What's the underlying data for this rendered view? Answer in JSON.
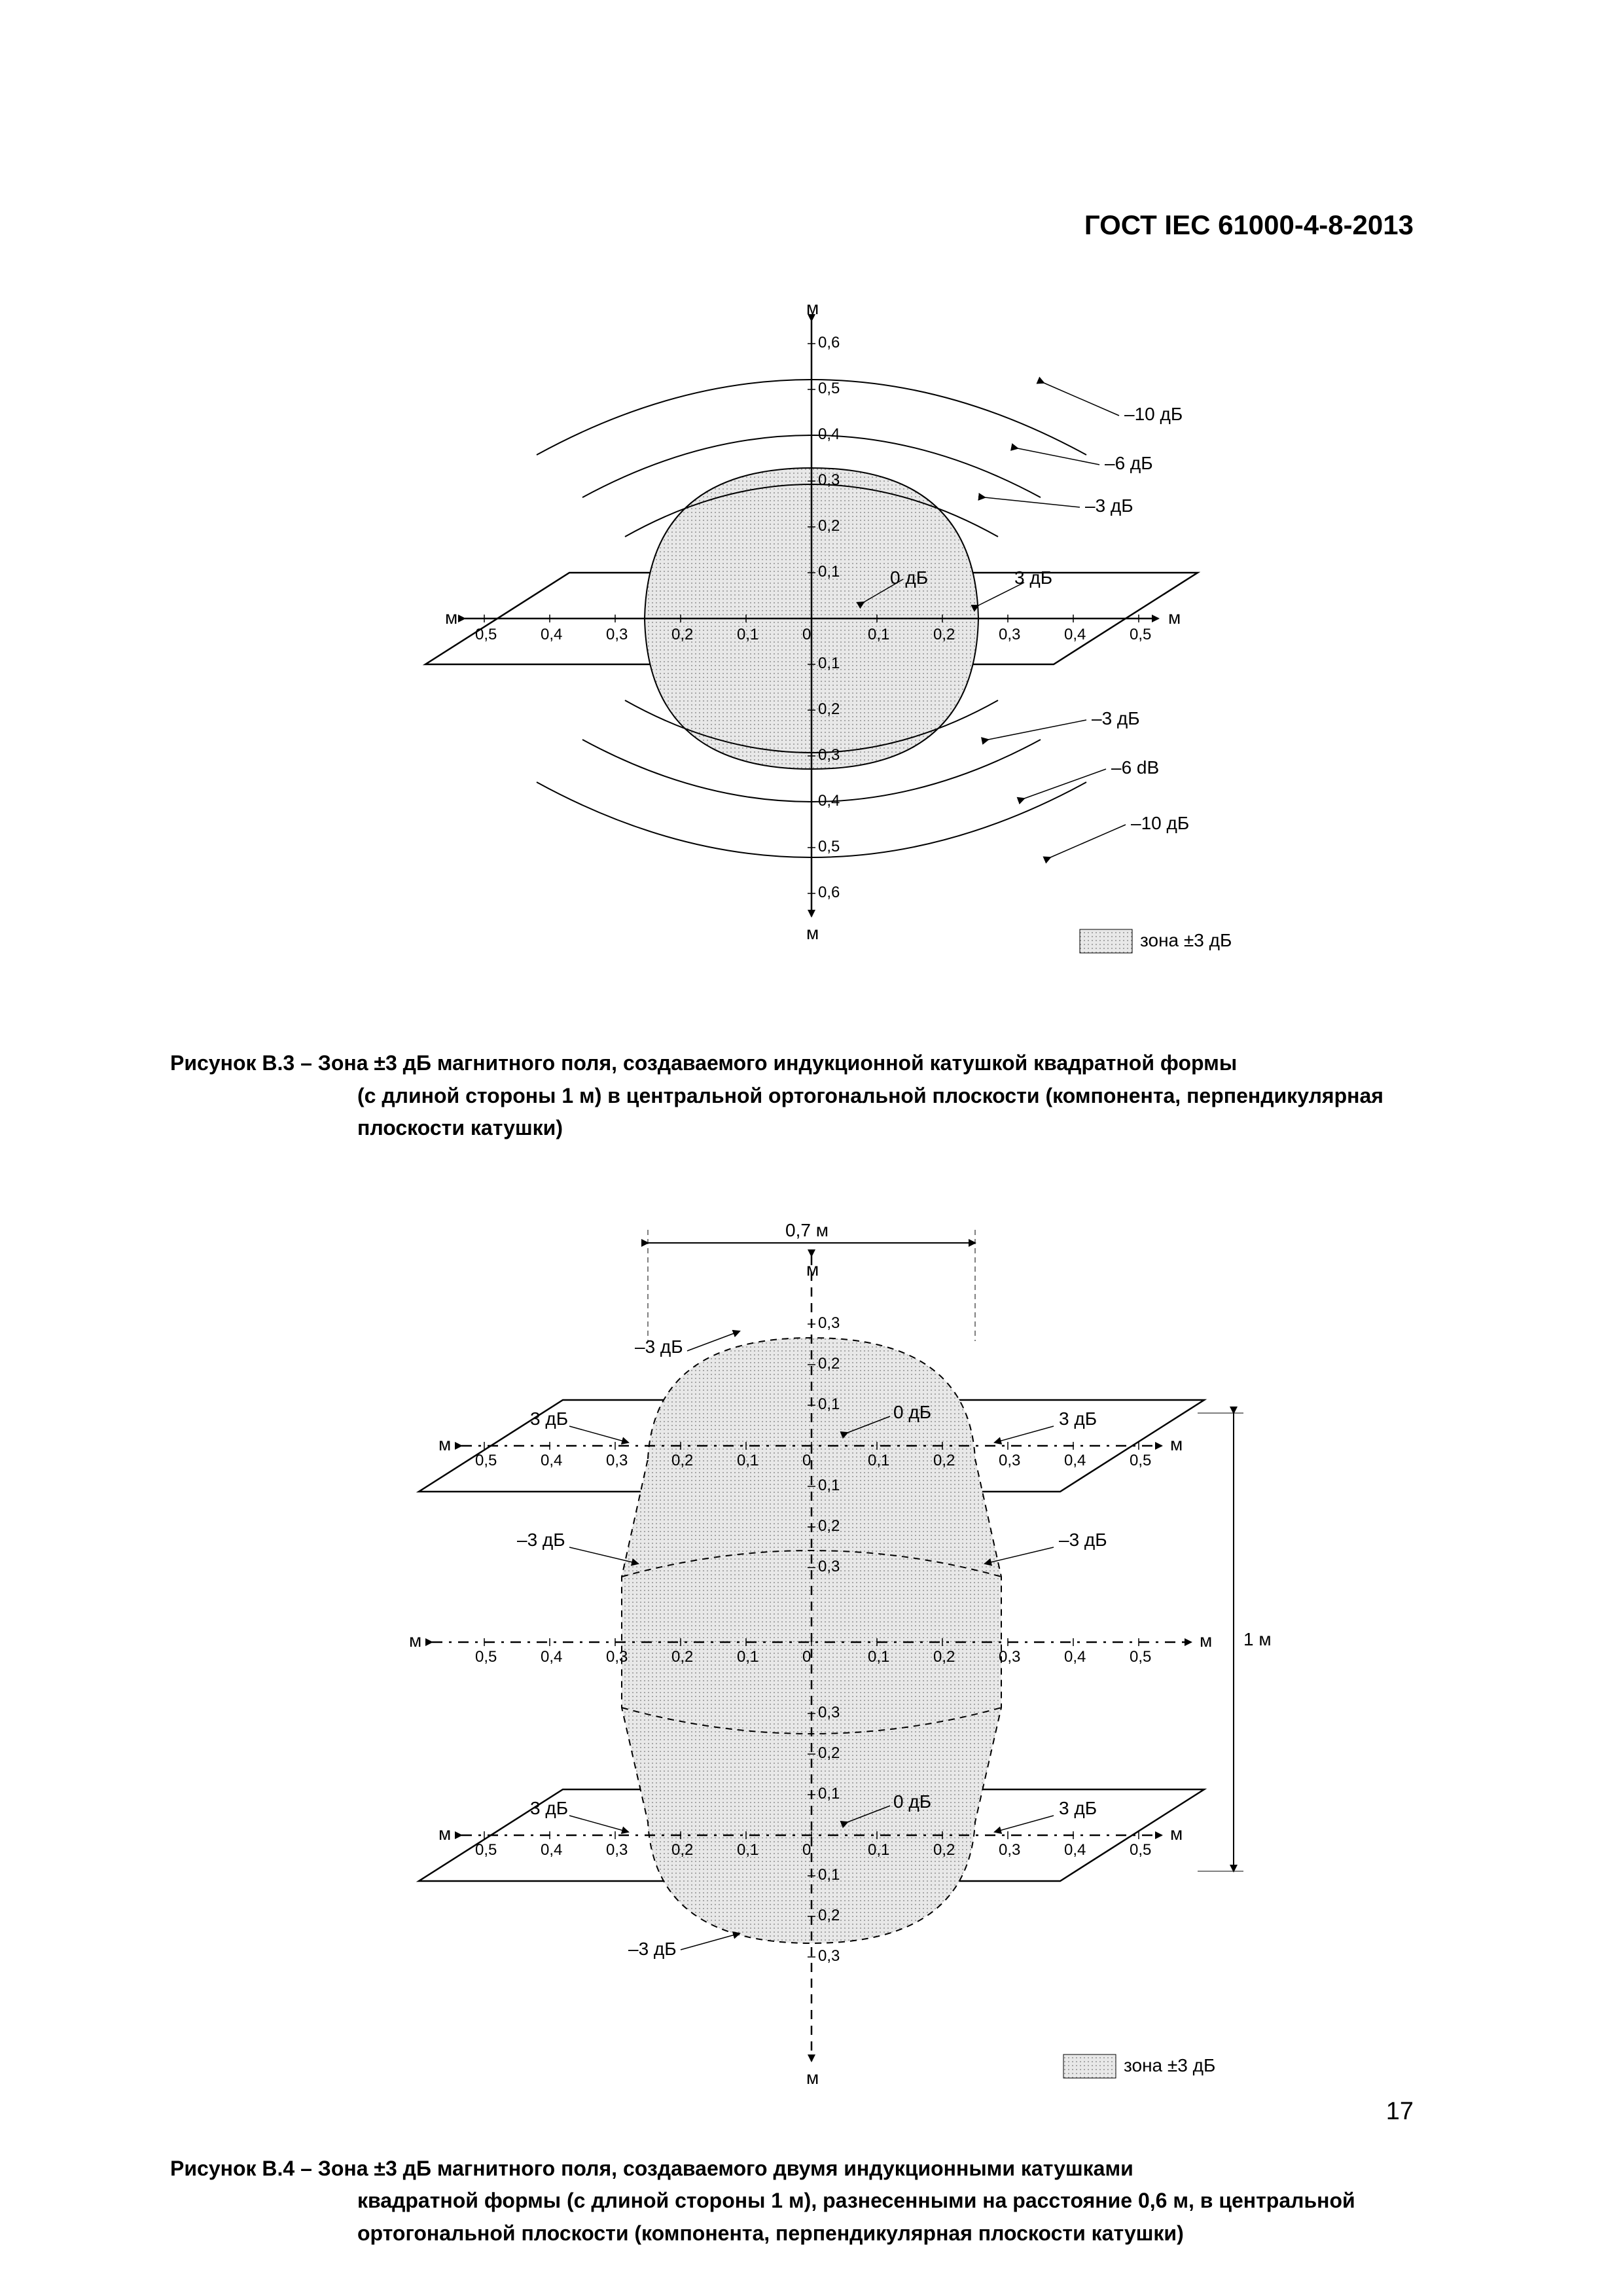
{
  "document": {
    "standard_header": "ГОСТ IEC 61000-4-8-2013",
    "page_number": "17"
  },
  "figB3": {
    "caption_lead": "Рисунок B.3 – Зона ±3 дБ магнитного поля, создаваемого индукционной катушкой квадратной формы",
    "caption_rest": "(с длиной стороны 1 м) в центральной ортогональной плоскости (компонента, перпендикулярная плоскости катушки)",
    "legend": "зона ±3 дБ",
    "axis_label": "м",
    "ticks_x": [
      "0,5",
      "0,4",
      "0,3",
      "0,2",
      "0,1",
      "0",
      "0,1",
      "0,2",
      "0,3",
      "0,4",
      "0,5"
    ],
    "ticks_y_pos": [
      "0,1",
      "0,2",
      "0,3",
      "0,4",
      "0,5",
      "0,6"
    ],
    "ticks_y_neg": [
      "0,1",
      "0,2",
      "0,3",
      "0,4",
      "0,5",
      "0,6"
    ],
    "shaded_fill": "#d0d0d0",
    "shaded_dot_color": "#808080",
    "stroke": "#000000",
    "contours": {
      "minus10_top": {
        "label": "–10 дБ",
        "radius": 0.58
      },
      "minus6_top": {
        "label": "–6 дБ",
        "radius": 0.45
      },
      "minus3_top": {
        "label": "–3 дБ",
        "radius": 0.34
      },
      "zero": {
        "label": "0 дБ"
      },
      "plus3": {
        "label": "3 дБ"
      },
      "minus3_bot": {
        "label": "–3 дБ"
      },
      "minus6_bot": {
        "label": "–6 dB"
      },
      "minus10_bot": {
        "label": "–10 дБ"
      }
    }
  },
  "figB4": {
    "caption_lead": "Рисунок B.4 – Зона ±3 дБ магнитного поля, создаваемого двумя индукционными катушками",
    "caption_rest": "квадратной формы (с длиной стороны 1 м), разнесенными на расстояние 0,6 м, в центральной ортогональной плоскости (компонента, перпендикулярная плоскости катушки)",
    "legend": "зона ±3 дБ",
    "axis_label": "м",
    "width_label": "0,7 м",
    "height_label": "1 м",
    "ticks_x": [
      "0,5",
      "0,4",
      "0,3",
      "0,2",
      "0,1",
      "0",
      "0,1",
      "0,2",
      "0,3",
      "0,4",
      "0,5"
    ],
    "ticks_y_seg": [
      "0,1",
      "0,2",
      "0,3"
    ],
    "shaded_fill": "#d0d0d0",
    "shaded_dot_color": "#808080",
    "stroke": "#000000",
    "labels": {
      "plus3": "3 дБ",
      "zero": "0 дБ",
      "minus3": "–3 дБ"
    }
  }
}
